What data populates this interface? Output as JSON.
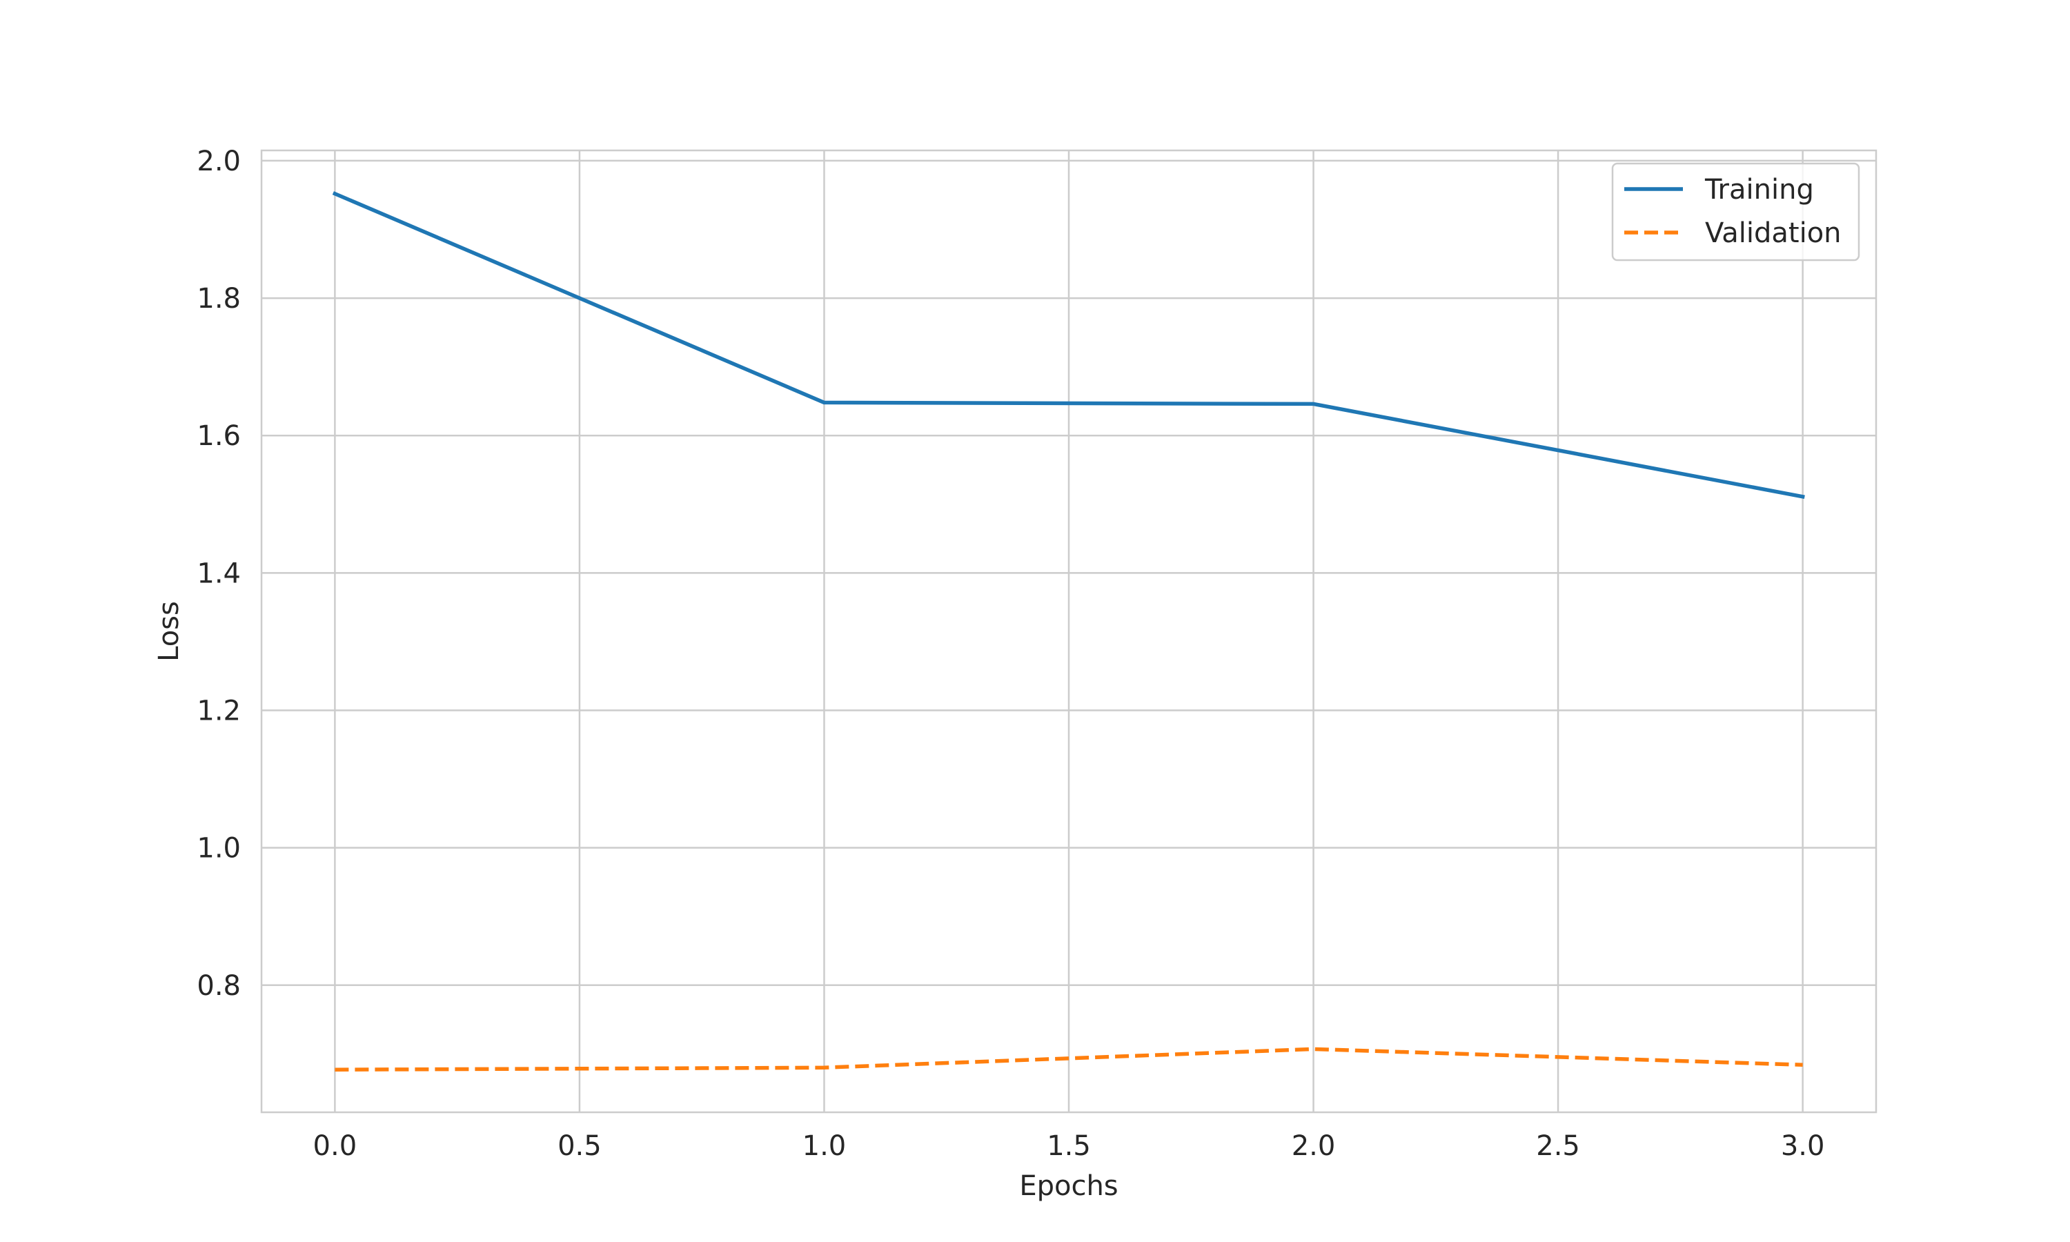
{
  "chart_data": {
    "type": "line",
    "title": "",
    "xlabel": "Epochs",
    "ylabel": "Loss",
    "xlim": [
      -0.15,
      3.15
    ],
    "ylim": [
      0.615,
      2.015
    ],
    "x_ticks": [
      0.0,
      0.5,
      1.0,
      1.5,
      2.0,
      2.5,
      3.0
    ],
    "x_tick_labels": [
      "0.0",
      "0.5",
      "1.0",
      "1.5",
      "2.0",
      "2.5",
      "3.0"
    ],
    "y_ticks": [
      0.8,
      1.0,
      1.2,
      1.4,
      1.6,
      1.8,
      2.0
    ],
    "y_tick_labels": [
      "0.8",
      "1.0",
      "1.2",
      "1.4",
      "1.6",
      "1.8",
      "2.0"
    ],
    "grid": true,
    "legend_position": "top-right",
    "x": [
      0,
      1,
      2,
      3
    ],
    "series": [
      {
        "name": "Training",
        "values": [
          1.952,
          1.648,
          1.646,
          1.511
        ],
        "color": "#1f77b4",
        "style": "solid"
      },
      {
        "name": "Validation",
        "values": [
          0.677,
          0.68,
          0.707,
          0.684
        ],
        "color": "#ff7f0e",
        "style": "dashed"
      }
    ]
  }
}
